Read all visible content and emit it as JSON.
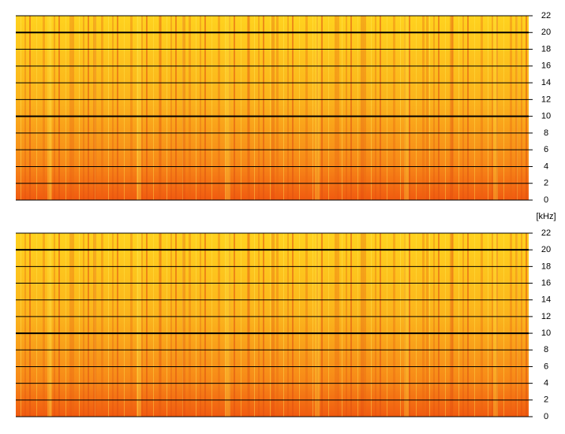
{
  "chart_data": [
    {
      "type": "spectrogram",
      "ylabel": "[kHz]",
      "ylim": [
        0,
        22
      ],
      "yticks": [
        0,
        2,
        4,
        6,
        8,
        10,
        12,
        14,
        16,
        18,
        20,
        22
      ],
      "grid": true,
      "grid_major": [
        10,
        20
      ]
    },
    {
      "type": "spectrogram",
      "ylim": [
        0,
        22
      ],
      "yticks": [
        0,
        2,
        4,
        6,
        8,
        10,
        12,
        14,
        16,
        18,
        20,
        22
      ],
      "grid": true,
      "grid_major": [
        10,
        20
      ]
    }
  ]
}
